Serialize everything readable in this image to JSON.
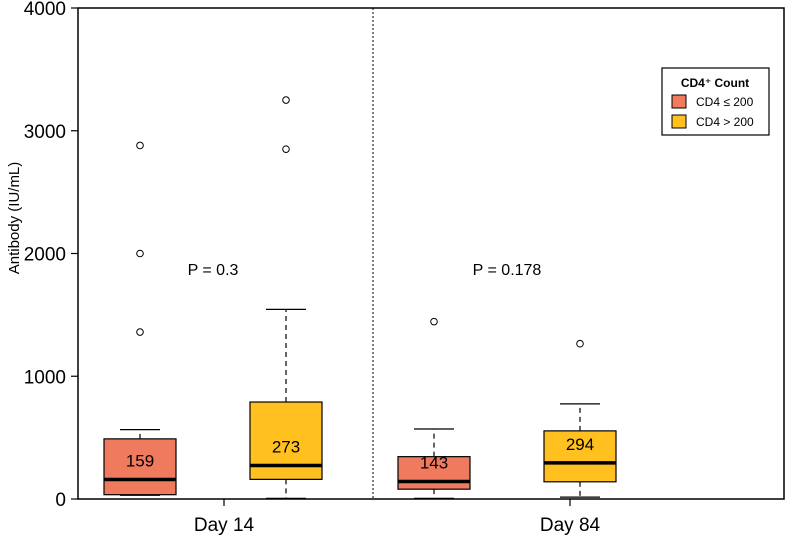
{
  "chart_data": {
    "type": "box",
    "ylabel": "Antibody (IU/mL)",
    "ylim": [
      0,
      4000
    ],
    "yticks": [
      "0",
      "1000",
      "2000",
      "3000",
      "4000"
    ],
    "groups": [
      {
        "label": "Day 14",
        "p_value": "P = 0.3"
      },
      {
        "label": "Day 84",
        "p_value": "P = 0.178"
      }
    ],
    "legend": {
      "title": "CD4⁺ Count",
      "position": "top-right",
      "entries": [
        {
          "label": "CD4 ≤ 200",
          "color": "#f07a5e"
        },
        {
          "label": "CD4 > 200",
          "color": "#ffc020"
        }
      ]
    },
    "boxes": [
      {
        "group": "Day 14",
        "series": "CD4 ≤ 200",
        "color": "#f07a5e",
        "min": 30,
        "q1": 35,
        "median": 159,
        "q3": 490,
        "max": 565,
        "median_label": "159",
        "outliers": [
          1360,
          2000,
          2880
        ]
      },
      {
        "group": "Day 14",
        "series": "CD4 > 200",
        "color": "#ffc020",
        "min": 5,
        "q1": 160,
        "median": 273,
        "q3": 790,
        "max": 1545,
        "median_label": "273",
        "outliers": [
          2850,
          3250
        ]
      },
      {
        "group": "Day 84",
        "series": "CD4 ≤ 200",
        "color": "#f07a5e",
        "min": 5,
        "q1": 80,
        "median": 143,
        "q3": 345,
        "max": 570,
        "median_label": "143",
        "outliers": [
          1445
        ]
      },
      {
        "group": "Day 84",
        "series": "CD4 > 200",
        "color": "#ffc020",
        "min": 15,
        "q1": 140,
        "median": 294,
        "q3": 555,
        "max": 775,
        "median_label": "294",
        "outliers": [
          1265
        ]
      }
    ],
    "divider": "dotted line between groups",
    "grid": false
  }
}
